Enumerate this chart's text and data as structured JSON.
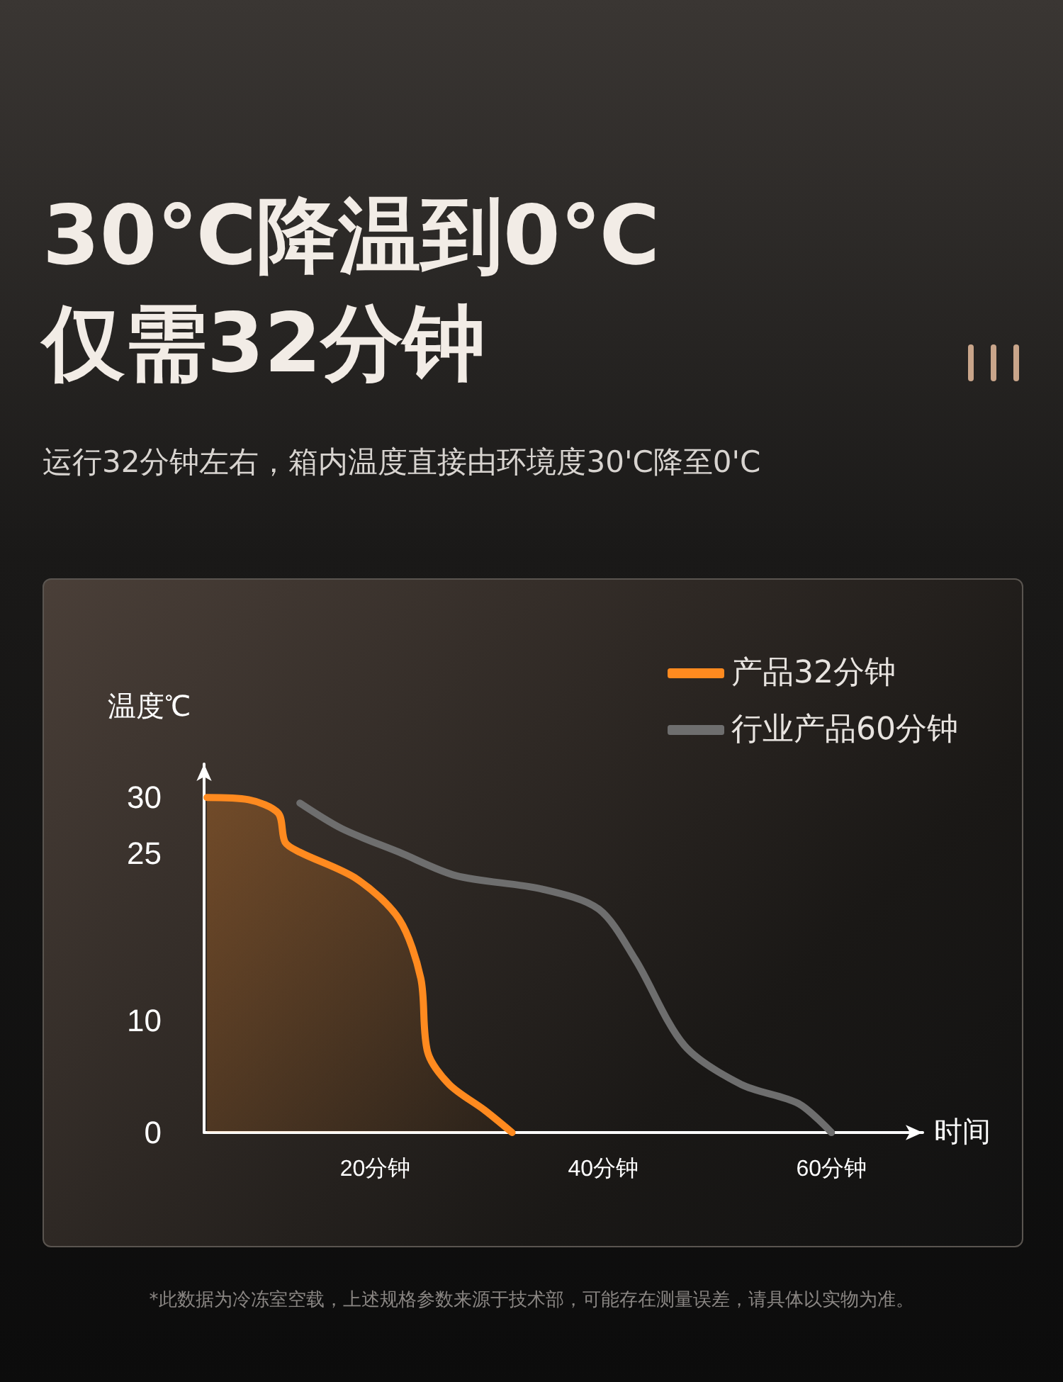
{
  "chart_data": {
    "type": "line",
    "title": "30℃降温到0℃\n仅需32分钟",
    "subtitle": "运行32分钟左右，箱内温度直接由环境度30'C降至0'C",
    "xlabel": "时间",
    "ylabel": "温度℃",
    "x": [
      5.25,
      8.9,
      11.5,
      12.1,
      13.4,
      18.4,
      22.1,
      24,
      24.6,
      26.5,
      29.6,
      32
    ],
    "series": [
      {
        "name": "产品32分钟",
        "type": "area",
        "color": "#ff8a1f",
        "values": [
          30,
          29.8,
          28.6,
          26,
          25.1,
          22.7,
          19.1,
          13.8,
          7.2,
          4.3,
          2,
          0
        ]
      },
      {
        "name": "行业产品60分钟",
        "type": "line",
        "color": "#6e6e6e",
        "x": [
          13.4,
          17.1,
          22.1,
          27.1,
          34.6,
          39.6,
          42.8,
          47.1,
          52.1,
          57.1,
          60
        ],
        "values": [
          29.5,
          27.2,
          25.1,
          23,
          21.8,
          20,
          15.5,
          7.8,
          4.3,
          2.6,
          0
        ]
      }
    ],
    "xlim": [
      5,
      68
    ],
    "xticks": [
      {
        "value": 20,
        "label": "20分钟"
      },
      {
        "value": 40,
        "label": "40分钟"
      },
      {
        "value": 60,
        "label": "60分钟"
      }
    ],
    "ylim": [
      0,
      33
    ],
    "yticks": [
      0,
      10,
      25,
      30
    ],
    "grid": false,
    "legend": "top right",
    "marker": "none",
    "line_style": "solid",
    "annotations": [
      "*此数据为冷冻室空载，上述规格参数来源于技术部，可能存在测量误差，请具体以实物为准。"
    ]
  }
}
